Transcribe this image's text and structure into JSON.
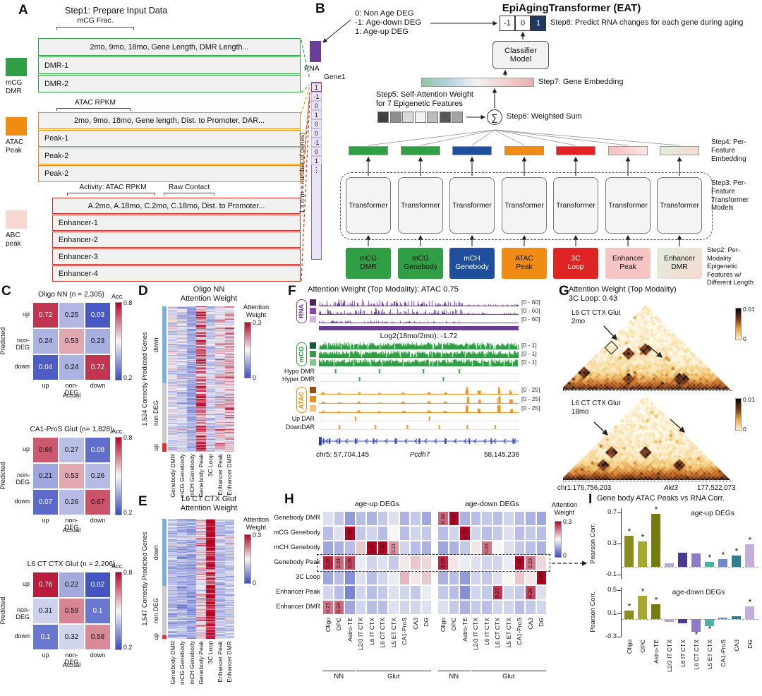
{
  "panelA": {
    "label": "A",
    "title": "Step1: Prepare Input Data",
    "mcg_frac_label": "mCG Frac.",
    "blocks": [
      {
        "legend_lines": [
          "mCG",
          "DMR"
        ],
        "border": "#2f9e44",
        "swatch": "#2f9e44",
        "bracket_labels": [],
        "header": "2mo, 9mo, 18mo, Gene Length, DMR Length...",
        "rows": [
          "DMR-1",
          "DMR-2"
        ]
      },
      {
        "legend_lines": [
          "ATAC",
          "Peak"
        ],
        "border": "#f08c13",
        "swatch": "#f08c13",
        "bracket_labels": [
          "ATAC RPKM"
        ],
        "header": "2mo, 9mo, 18mo, Gene length, Dist. to Promoter, DAR...",
        "rows": [
          "Peak-1",
          "Peak-2",
          "Peak-2"
        ]
      },
      {
        "legend_lines": [
          "ABC",
          "peak"
        ],
        "border": "#d93025",
        "swatch": "#f6d7d2",
        "bracket_labels": [
          "Activity: ATAC RPKM",
          "Raw Contact"
        ],
        "header": "A.2mo, A.18mo, C.2mo, C.18mo, Dist. to Promoter...",
        "rows": [
          "Enhancer-1",
          "Enhancer-2",
          "Enhancer-3",
          "Enhancer-4"
        ]
      }
    ]
  },
  "panelB": {
    "label": "B",
    "title": "EpiAgingTransformer (EAT)",
    "deg_legend": [
      "0: Non Age DEG",
      "-1: Age-down DEG",
      "1: Age-up DEG"
    ],
    "rna_label": "RNA",
    "gene_label": "Gene1",
    "vector_values": [
      "1",
      "-1",
      "0",
      "1",
      "0",
      "0",
      "-1",
      "0",
      "1"
    ],
    "vector_more": "⋮",
    "vector_axis_label": "1 x n  (n = number of genes)",
    "prediction_cells": [
      {
        "value": "-1",
        "bg": "#ffffff",
        "fg": "#111111"
      },
      {
        "value": "0",
        "bg": "#ffffff",
        "fg": "#111111"
      },
      {
        "value": "1",
        "bg": "#1f3864",
        "fg": "#ffffff"
      }
    ],
    "classifier_lines": [
      "Classifier",
      "Model"
    ],
    "sum_symbol": "∑",
    "transformer_label": "Transformer",
    "steps": {
      "step2": "Step2: Per-Modality Epigenetic Features w/ Different Length",
      "step3": "Step3: Per-Feature Transformer Models",
      "step4": "Step4: Per-Feature Embedding",
      "step5_lines": [
        "Step5: Self-Attention Weight",
        "for 7 Epigenetic Features"
      ],
      "step6": "Step6: Weighted Sum",
      "step7": "Step7: Gene Embedding",
      "step8": "Step8: Predict RNA changes for each gene during aging"
    },
    "attention_squares": [
      "#3f3f3f",
      "#8e8e8e",
      "#d9d9d9",
      "#f4f4f4",
      "#bcbcbc",
      "#565656",
      "#a3a3a3"
    ],
    "embedding_colors": [
      "#2f9e44",
      "#2f9e44",
      "#1f4e9c",
      "#f08c13",
      "#e02424",
      "linear-gradient(90deg,#f5c0bd,#fae6e4)",
      "linear-gradient(90deg,#dfeeda,#f6d9d2)"
    ],
    "features": [
      {
        "lines": [
          "mCG",
          "DMR"
        ],
        "bg": "#2f9e44",
        "fg": "#111111"
      },
      {
        "lines": [
          "mCG",
          "Genebody"
        ],
        "bg": "#2f9e44",
        "fg": "#111111"
      },
      {
        "lines": [
          "mCH",
          "Genebody"
        ],
        "bg": "#1f4e9c",
        "fg": "#ffffff"
      },
      {
        "lines": [
          "ATAC",
          "Peak"
        ],
        "bg": "#f08c13",
        "fg": "#111111"
      },
      {
        "lines": [
          "3C",
          "Loop"
        ],
        "bg": "#e02424",
        "fg": "#ffffff"
      },
      {
        "lines": [
          "Enhancer",
          "Peak"
        ],
        "bg": "#f5c6c3",
        "fg": "#111111"
      },
      {
        "lines": [
          "Enhancer",
          "DMR"
        ],
        "bg": "linear-gradient(135deg,#dfeeda,#f6d9d2)",
        "fg": "#111111"
      }
    ]
  },
  "panelC": {
    "label": "C",
    "ylabel": "Predicted",
    "xlabel": "Actual",
    "classes": [
      "up",
      "non-DEG",
      "down"
    ],
    "colorbar_title": "Acc.",
    "colorbar_ticks": [
      "0.8",
      "0.2"
    ],
    "matrices": [
      {
        "title": "Oligo NN (n = 2,305)",
        "values": [
          [
            0.72,
            0.25,
            0.03
          ],
          [
            0.24,
            0.53,
            0.23
          ],
          [
            0.04,
            0.24,
            0.72
          ]
        ]
      },
      {
        "title": "CA1-ProS Glut (n= 1,828)",
        "values": [
          [
            0.66,
            0.27,
            0.08
          ],
          [
            0.21,
            0.53,
            0.26
          ],
          [
            0.07,
            0.26,
            0.67
          ]
        ]
      },
      {
        "title": "L6 CT CTX Glut (n = 2,206)",
        "values": [
          [
            0.76,
            0.22,
            0.02
          ],
          [
            0.31,
            0.59,
            0.1
          ],
          [
            0.1,
            0.32,
            0.58
          ]
        ]
      }
    ]
  },
  "panelD": {
    "label": "D",
    "title_lines": [
      "Oligo NN",
      "Attention Weight"
    ],
    "genes_label": "1,524 Correctly Predicted Genes",
    "groups": [
      {
        "name": "down",
        "frac": 0.53,
        "color": "#7bafd6"
      },
      {
        "name": "non DEG",
        "frac": 0.41,
        "color": "#c9c9c9"
      },
      {
        "name": "up",
        "frac": 0.06,
        "color": "#e03131"
      }
    ],
    "columns": [
      "Genebody DMR",
      "mCG Genebody",
      "mCH Genebody",
      "Genebody Peak",
      "3C Loop",
      "Enhancer Peak",
      "Enhancer DMR"
    ],
    "column_intensity": [
      0.1,
      0.09,
      0.05,
      0.2,
      0.08,
      0.13,
      0.15
    ],
    "colorbar_title_lines": [
      "Attention",
      "Weight"
    ],
    "colorbar_ticks": [
      "0.3",
      "0"
    ]
  },
  "panelE": {
    "label": "E",
    "title_lines": [
      "L6 CT CTX Glut",
      "Attention Weight"
    ],
    "genes_label": "1,547 Correctly Predicted Genes",
    "groups": [
      {
        "name": "down",
        "frac": 0.56,
        "color": "#7bafd6"
      },
      {
        "name": "non DEG",
        "frac": 0.41,
        "color": "#c9c9c9"
      },
      {
        "name": "up",
        "frac": 0.03,
        "color": "#e03131"
      }
    ],
    "columns": [
      "Genebody DMR",
      "mCG Genebody",
      "mCH Genebody",
      "Genebody Peak",
      "3C Loop",
      "Enhancer Peak",
      "Enhancer DMR"
    ],
    "column_intensity": [
      0.07,
      0.06,
      0.05,
      0.13,
      0.27,
      0.07,
      0.09
    ],
    "colorbar_title_lines": [
      "Attention",
      "Weight"
    ],
    "colorbar_ticks": [
      "0.3",
      "0"
    ]
  },
  "panelF": {
    "label": "F",
    "title": "Attention Weight (Top Modality): ATAC 0.75",
    "log2_label": "Log2(18mo/2mo): -1.72",
    "groups": [
      {
        "name": "RNA",
        "color": "#7d3c98",
        "range": "[0 - 60]",
        "chips": [
          "#4a235a",
          "#8e44ad",
          "#d2b4de"
        ]
      },
      {
        "name": "mCG",
        "color": "#2f9e44",
        "range": "[0 - 1]",
        "chips": [
          "#145a32",
          "#2f9e44",
          "#82c785"
        ]
      },
      {
        "name": "ATAC",
        "color": "#f08c13",
        "range": "[0 - 25]",
        "chips": [
          "#935116",
          "#f08c13",
          "#f8c471"
        ]
      }
    ],
    "marker_rows": [
      {
        "label": "Hypo DMR",
        "color": "#2f9e44",
        "ticks": [
          0.08,
          0.3,
          0.52,
          0.7
        ]
      },
      {
        "label": "Hyper DMR",
        "color": "#2f9e44",
        "ticks": [
          0.2,
          0.62
        ]
      },
      {
        "label": "Up DAR",
        "color": "#f08c13",
        "ticks": [
          0.18,
          0.55
        ]
      },
      {
        "label": "DownDAR",
        "color": "#f08c13",
        "ticks": [
          0.1,
          0.28,
          0.44,
          0.6,
          0.74,
          0.88
        ]
      }
    ],
    "coords": {
      "start": "chr5: 57,704,145",
      "gene": "Pcdh7",
      "end": "58,145,236"
    }
  },
  "panelG": {
    "label": "G",
    "title_lines": [
      "Attention Weight (Top Modality)",
      "3C Loop: 0.43"
    ],
    "maps": [
      {
        "label_lines": [
          "L6 CT CTX Glut",
          "2mo"
        ]
      },
      {
        "label_lines": [
          "L6 CT CTX Glut",
          "18mo"
        ]
      }
    ],
    "colorbar_ticks": [
      "0.01",
      "0"
    ],
    "coords": {
      "start": "chr1:176,756,203",
      "gene": "Akt3",
      "end": "177,522,073"
    }
  },
  "panelH": {
    "label": "H",
    "rows": [
      "Genebody DMR",
      "mCG Genebody",
      "mCH Genebody",
      "Genebody Peak",
      "3C Loop",
      "Enhancer Peak",
      "Enhancer DMR"
    ],
    "columns": [
      "Oligo",
      "OPC",
      "Astro-TE",
      "L2/3 IT CTX",
      "L6 IT CTX",
      "L6 CT CTX",
      "L5 ET CTX",
      "CA1-ProS",
      "CA3",
      "DG"
    ],
    "groups": [
      {
        "name": "NN",
        "span": 3
      },
      {
        "name": "Glut",
        "span": 7
      }
    ],
    "colorbar_title_lines": [
      "Attention",
      "Weight"
    ],
    "colorbar_ticks": [
      "0.3",
      "0"
    ],
    "annotate_min": 0.21,
    "heatmaps": [
      {
        "title": "age-up DEGs",
        "values": [
          [
            0.13,
            0.11,
            0.07,
            0.1,
            0.09,
            0.11,
            0.13,
            0.09,
            0.11,
            0.08
          ],
          [
            0.1,
            0.13,
            0.38,
            0.11,
            0.12,
            0.1,
            0.15,
            0.1,
            0.12,
            0.11
          ],
          [
            0.08,
            0.09,
            0.1,
            0.18,
            0.37,
            0.33,
            0.21,
            0.12,
            0.1,
            0.09
          ],
          [
            0.28,
            0.24,
            0.26,
            0.14,
            0.12,
            0.13,
            0.11,
            0.16,
            0.18,
            0.17
          ],
          [
            0.08,
            0.1,
            0.06,
            0.13,
            0.1,
            0.12,
            0.14,
            0.19,
            0.16,
            0.18
          ],
          [
            0.12,
            0.1,
            0.05,
            0.12,
            0.1,
            0.11,
            0.13,
            0.12,
            0.11,
            0.14
          ],
          [
            0.23,
            0.24,
            0.08,
            0.12,
            0.1,
            0.1,
            0.13,
            0.12,
            0.12,
            0.13
          ]
        ]
      },
      {
        "title": "age-down DEGs",
        "values": [
          [
            0.24,
            0.33,
            0.09,
            0.1,
            0.11,
            0.1,
            0.12,
            0.1,
            0.09,
            0.08
          ],
          [
            0.1,
            0.12,
            0.31,
            0.12,
            0.1,
            0.11,
            0.13,
            0.1,
            0.11,
            0.1
          ],
          [
            0.08,
            0.09,
            0.11,
            0.16,
            0.23,
            0.15,
            0.13,
            0.11,
            0.1,
            0.09
          ],
          [
            0.28,
            0.16,
            0.14,
            0.13,
            0.12,
            0.12,
            0.14,
            0.31,
            0.23,
            0.17
          ],
          [
            0.09,
            0.1,
            0.07,
            0.12,
            0.11,
            0.13,
            0.15,
            0.18,
            0.16,
            0.35
          ],
          [
            0.11,
            0.1,
            0.06,
            0.12,
            0.11,
            0.27,
            0.12,
            0.11,
            0.26,
            0.13
          ],
          [
            0.13,
            0.11,
            0.09,
            0.11,
            0.1,
            0.12,
            0.12,
            0.1,
            0.11,
            0.12
          ]
        ]
      }
    ]
  },
  "panelI": {
    "label": "I",
    "title": "Gene body ATAC Peaks vs RNA Corr.",
    "ylabel": "Pearson Corr.",
    "categories": [
      "Oligo",
      "OPC",
      "Astro-TE",
      "L2/3 IT CTX",
      "L6 IT CTX",
      "L6 CT CTX",
      "L5 ET CTX",
      "CA1-ProS",
      "CA3",
      "DG"
    ],
    "colors": [
      "#8a8c1e",
      "#a6a832",
      "#767a10",
      "#b9a7d8",
      "#4b3a8f",
      "#8f7bc4",
      "#4fb0a5",
      "#7189c9",
      "#2e7e8f",
      "#c3aede"
    ],
    "charts": [
      {
        "label": "age-up DEGs",
        "ylim": [
          -0.15,
          0.75
        ],
        "yticks": [
          0.7,
          0.3,
          -0.1
        ],
        "values": [
          0.4,
          0.33,
          0.68,
          0.05,
          0.18,
          0.17,
          0.07,
          0.1,
          0.15,
          0.29
        ],
        "significant": [
          1,
          1,
          1,
          0,
          0,
          0,
          1,
          1,
          1,
          1
        ]
      },
      {
        "label": "age-down DEGs",
        "ylim": [
          -0.3,
          0.55
        ],
        "yticks": [
          0.5,
          0.1,
          -0.3
        ],
        "values": [
          0.15,
          0.41,
          0.26,
          -0.04,
          -0.07,
          -0.22,
          -0.12,
          0.03,
          0.05,
          0.22
        ],
        "significant": [
          1,
          1,
          1,
          0,
          0,
          1,
          1,
          0,
          0,
          1
        ]
      }
    ]
  }
}
